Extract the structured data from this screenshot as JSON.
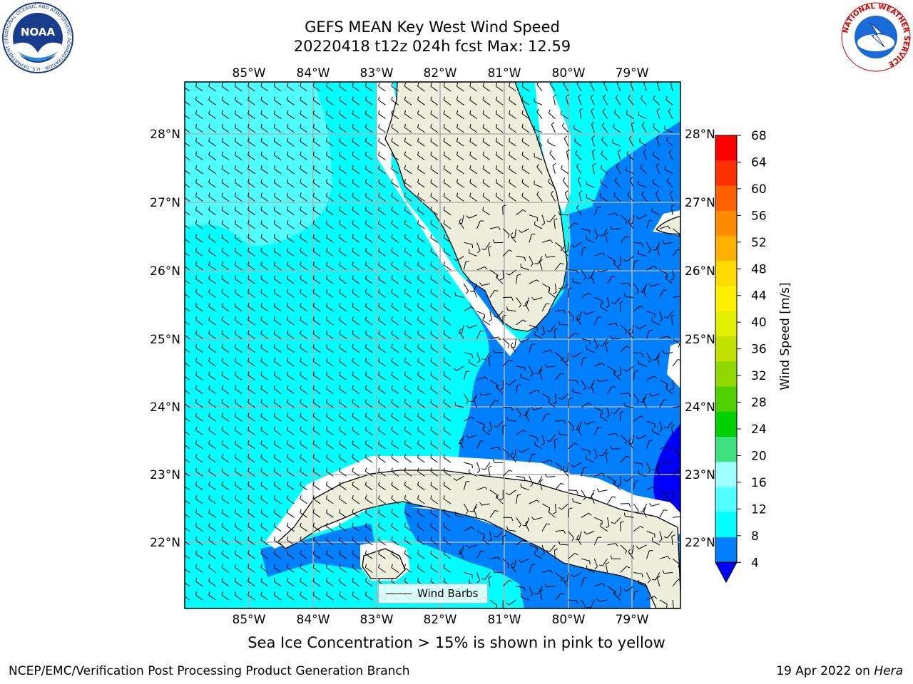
{
  "header": {
    "title_line1": "GEFS MEAN Key West Wind Speed",
    "title_line2": "20220418 t12z 024h fcst   Max: 12.59"
  },
  "logos": {
    "left": "NOAA",
    "left_ring": "NATIONAL OCEANIC AND ATMOSPHERIC ADMINISTRATION · U.S. DEPARTMENT OF COMMERCE",
    "right_ring": "NATIONAL WEATHER SERVICE"
  },
  "map": {
    "lon_labels": [
      "85°W",
      "84°W",
      "83°W",
      "82°W",
      "81°W",
      "80°W",
      "79°W"
    ],
    "lat_labels": [
      "28°N",
      "27°N",
      "26°N",
      "25°N",
      "24°N",
      "23°N",
      "22°N"
    ],
    "legend_label": "Wind Barbs"
  },
  "colorbar": {
    "label": "Wind Speed [m/s]",
    "ticks": [
      "68",
      "64",
      "60",
      "56",
      "52",
      "48",
      "44",
      "40",
      "36",
      "32",
      "28",
      "24",
      "20",
      "16",
      "12",
      "8",
      "4"
    ],
    "colors": [
      "#ff0000",
      "#ff3000",
      "#ff6000",
      "#ff8c00",
      "#ffb000",
      "#ffdc00",
      "#fff000",
      "#e0f000",
      "#c0e000",
      "#90d800",
      "#50d000",
      "#00d000",
      "#40e080",
      "#a0ffff",
      "#50ffff",
      "#00ffff",
      "#0080ff"
    ],
    "under_color": "#0000ff"
  },
  "fill_colors": {
    "speed_4_8": "#0080ff",
    "speed_8_12": "#00ffff",
    "speed_12_16": "#50ffff",
    "speed_under_4": "#0000ff",
    "land": "#eeeedd"
  },
  "footer": {
    "note": "Sea Ice Concentration > 15% is shown in pink to yellow",
    "left": "NCEP/EMC/Verification Post Processing Product Generation Branch",
    "right_date": "19 Apr 2022 on ",
    "right_host": "Hera"
  }
}
